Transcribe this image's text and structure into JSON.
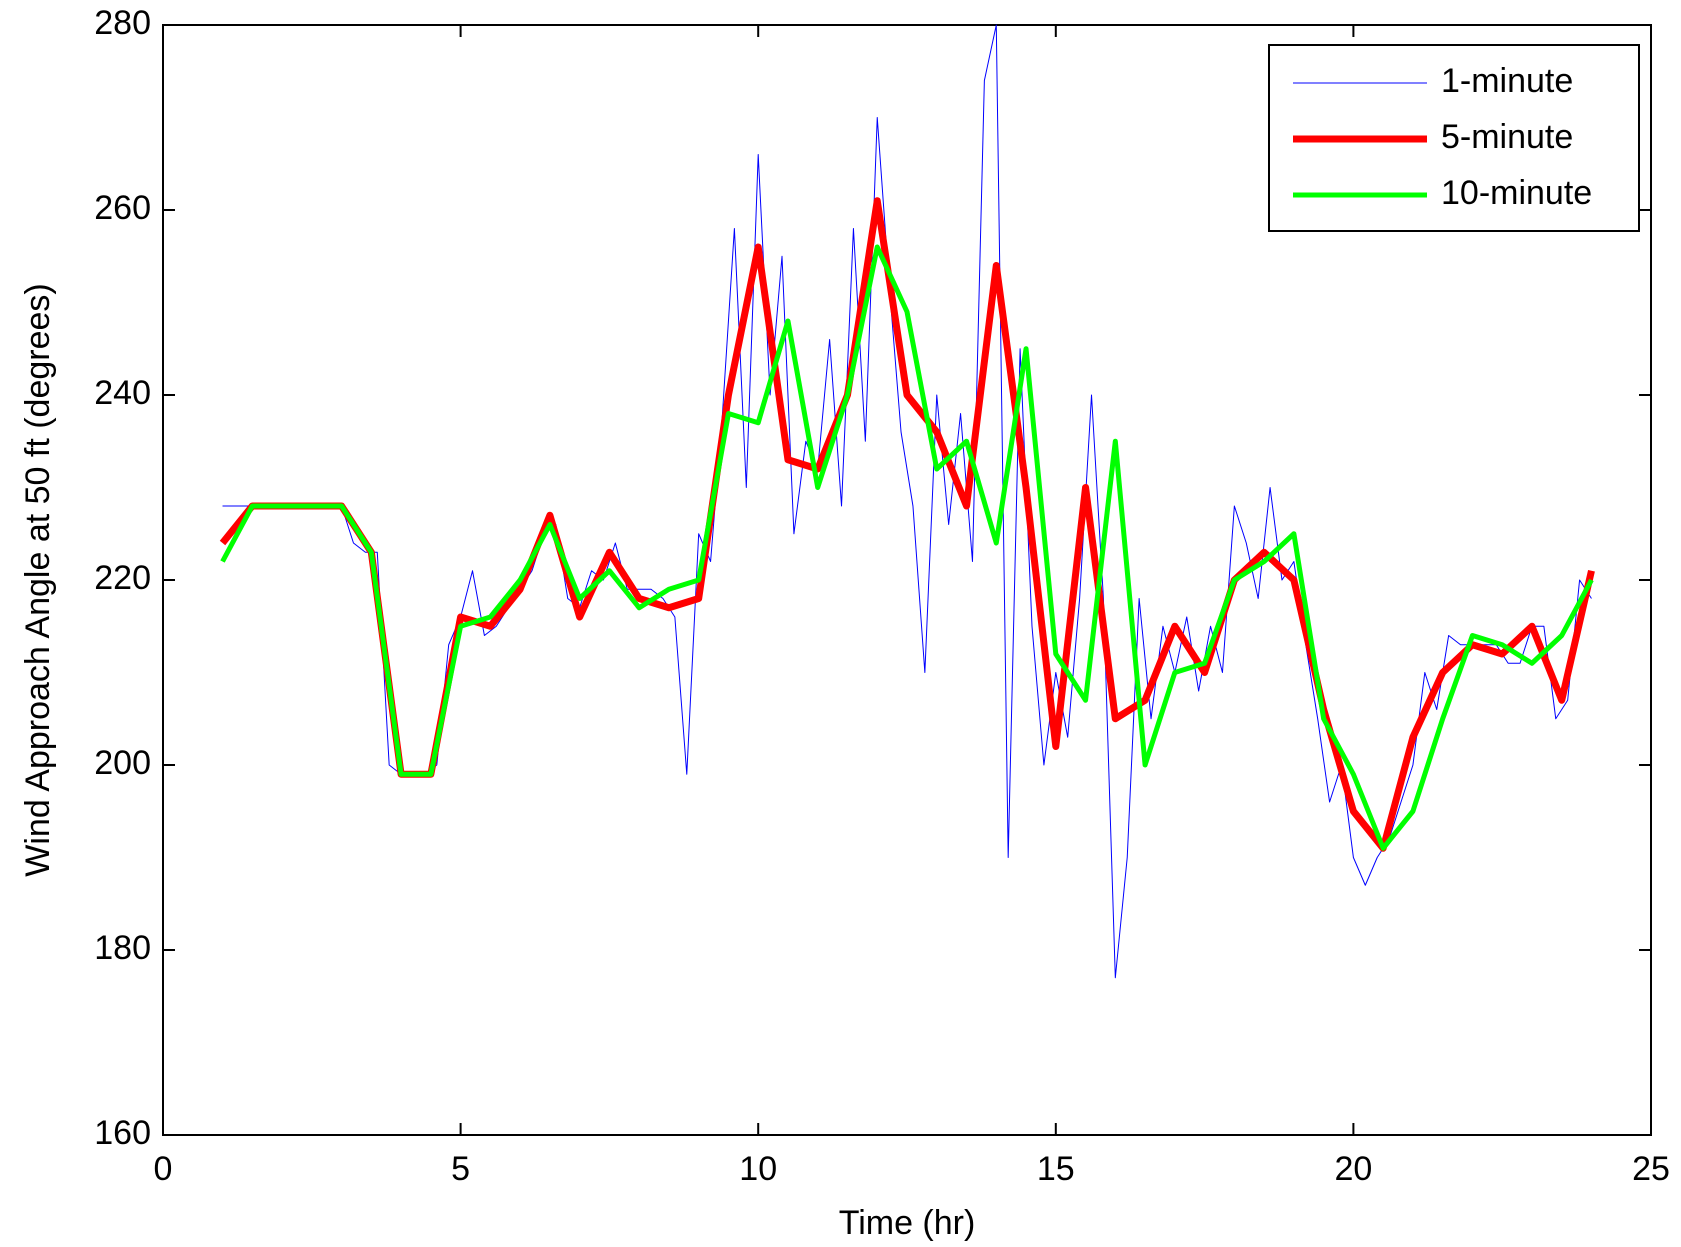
{
  "chart_data": {
    "type": "line",
    "xlabel": "Time (hr)",
    "ylabel": "Wind Approach Angle at 50 ft  (degrees)",
    "xlim": [
      0,
      25
    ],
    "xticks": [
      0,
      5,
      10,
      15,
      20,
      25
    ],
    "ylim": [
      160,
      280
    ],
    "yticks": [
      160,
      180,
      200,
      220,
      240,
      260,
      280
    ],
    "legend": "upper right",
    "series": [
      {
        "name": "1-minute",
        "color": "#0000ff",
        "x": [
          1,
          1.2,
          1.4,
          1.6,
          1.8,
          2,
          2.2,
          2.4,
          2.6,
          2.8,
          3,
          3.2,
          3.4,
          3.6,
          3.8,
          4,
          4.2,
          4.4,
          4.6,
          4.8,
          5,
          5.2,
          5.4,
          5.6,
          5.8,
          6,
          6.2,
          6.4,
          6.6,
          6.8,
          7,
          7.2,
          7.4,
          7.6,
          7.8,
          8,
          8.2,
          8.4,
          8.6,
          8.8,
          9,
          9.2,
          9.4,
          9.6,
          9.8,
          10,
          10.2,
          10.4,
          10.6,
          10.8,
          11,
          11.2,
          11.4,
          11.6,
          11.8,
          12,
          12.2,
          12.4,
          12.6,
          12.8,
          13,
          13.2,
          13.4,
          13.6,
          13.8,
          14,
          14.2,
          14.4,
          14.6,
          14.8,
          15,
          15.2,
          15.4,
          15.6,
          15.8,
          16,
          16.2,
          16.4,
          16.6,
          16.8,
          17,
          17.2,
          17.4,
          17.6,
          17.8,
          18,
          18.2,
          18.4,
          18.6,
          18.8,
          19,
          19.2,
          19.4,
          19.6,
          19.8,
          20,
          20.2,
          20.4,
          20.6,
          20.8,
          21,
          21.2,
          21.4,
          21.6,
          21.8,
          22,
          22.2,
          22.4,
          22.6,
          22.8,
          23,
          23.2,
          23.4,
          23.6,
          23.8,
          24
        ],
        "values": [
          228,
          228,
          228,
          228,
          228,
          228,
          228,
          228,
          228,
          228,
          228,
          224,
          223,
          223,
          200,
          199,
          199,
          199,
          200,
          213,
          216,
          221,
          214,
          215,
          217,
          219,
          221,
          225,
          226,
          218,
          217,
          221,
          220,
          224,
          219,
          219,
          219,
          218,
          216,
          199,
          225,
          222,
          238,
          258,
          230,
          266,
          240,
          255,
          225,
          235,
          232,
          246,
          228,
          258,
          235,
          270,
          252,
          236,
          228,
          210,
          240,
          226,
          238,
          222,
          274,
          280,
          190,
          245,
          215,
          200,
          210,
          203,
          218,
          240,
          218,
          177,
          190,
          218,
          205,
          215,
          210,
          216,
          208,
          215,
          210,
          228,
          224,
          218,
          230,
          220,
          222,
          213,
          205,
          196,
          200,
          190,
          187,
          190,
          192,
          196,
          200,
          210,
          206,
          214,
          213,
          213,
          213,
          213,
          211,
          211,
          215,
          215,
          205,
          207,
          220,
          218
        ]
      },
      {
        "name": "5-minute",
        "color": "#ff0000",
        "x": [
          1,
          1.5,
          2,
          2.5,
          3,
          3.5,
          4,
          4.5,
          5,
          5.5,
          6,
          6.5,
          7,
          7.5,
          8,
          8.5,
          9,
          9.5,
          10,
          10.5,
          11,
          11.5,
          12,
          12.5,
          13,
          13.5,
          14,
          14.5,
          15,
          15.5,
          16,
          16.5,
          17,
          17.5,
          18,
          18.5,
          19,
          19.5,
          20,
          20.5,
          21,
          21.5,
          22,
          22.5,
          23,
          23.5,
          24
        ],
        "values": [
          224,
          228,
          228,
          228,
          228,
          223,
          199,
          199,
          216,
          215,
          219,
          227,
          216,
          223,
          218,
          217,
          218,
          240,
          256,
          233,
          232,
          240,
          261,
          240,
          236,
          228,
          254,
          230,
          202,
          230,
          205,
          207,
          215,
          210,
          220,
          223,
          220,
          206,
          195,
          191,
          203,
          210,
          213,
          212,
          215,
          207,
          221
        ]
      },
      {
        "name": "10-minute",
        "color": "#00ff00",
        "x": [
          1,
          1.5,
          2,
          2.5,
          3,
          3.5,
          4,
          4.5,
          5,
          5.5,
          6,
          6.5,
          7,
          7.5,
          8,
          8.5,
          9,
          9.5,
          10,
          10.5,
          11,
          11.5,
          12,
          12.5,
          13,
          13.5,
          14,
          14.5,
          15,
          15.5,
          16,
          16.5,
          17,
          17.5,
          18,
          18.5,
          19,
          19.5,
          20,
          20.5,
          21,
          21.5,
          22,
          22.5,
          23,
          23.5,
          24
        ],
        "values": [
          222,
          228,
          228,
          228,
          228,
          223,
          199,
          199,
          215,
          216,
          220,
          226,
          218,
          221,
          217,
          219,
          220,
          238,
          237,
          248,
          230,
          240,
          256,
          249,
          232,
          235,
          224,
          245,
          212,
          207,
          235,
          200,
          210,
          211,
          220,
          222,
          225,
          205,
          199,
          191,
          195,
          205,
          214,
          213,
          211,
          214,
          220
        ]
      }
    ]
  }
}
